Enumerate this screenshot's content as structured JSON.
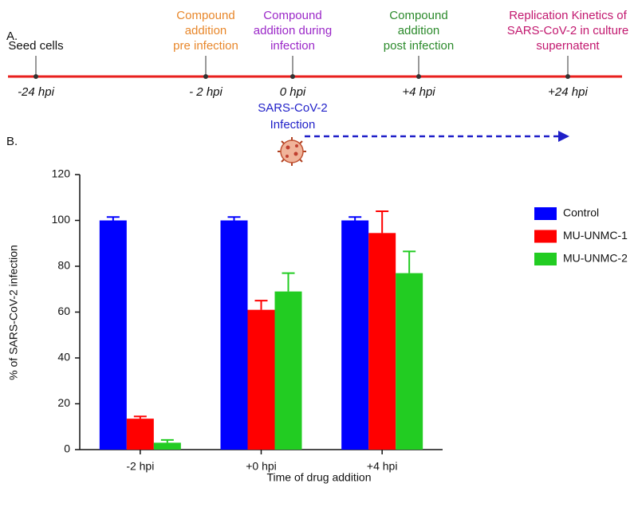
{
  "panel_a": {
    "label": "A.",
    "events": [
      {
        "lines": [
          "Seed cells"
        ],
        "color": "#111111",
        "tick": "-24 hpi"
      },
      {
        "lines": [
          "Compound",
          "addition",
          "pre infection"
        ],
        "color": "#e8872b",
        "tick": "- 2 hpi"
      },
      {
        "lines": [
          "Compound",
          "addition during",
          "infection"
        ],
        "color": "#9b28c8",
        "tick": "0 hpi"
      },
      {
        "lines": [
          "Compound",
          "addition",
          "post infection"
        ],
        "color": "#2b8a2b",
        "tick": "+4 hpi"
      },
      {
        "lines": [
          "Replication Kinetics of",
          "SARS-CoV-2 in culture",
          "supernatent"
        ],
        "color": "#c2186f",
        "tick": "+24 hpi"
      }
    ],
    "infection_label": [
      "SARS-CoV-2",
      "Infection"
    ],
    "infection_color": "#1f1fc8",
    "line_color": "#e8201e"
  },
  "chart_data": {
    "type": "bar",
    "panel_label": "B.",
    "categories": [
      "-2 hpi",
      "+0 hpi",
      "+4 hpi"
    ],
    "series": [
      {
        "name": "Control",
        "color": "#0000ff",
        "values": [
          100,
          100,
          100
        ],
        "errors": [
          1.5,
          1.5,
          1.5
        ]
      },
      {
        "name": "MU-UNMC-1",
        "color": "#ff0000",
        "values": [
          13.5,
          61,
          94.5
        ],
        "errors": [
          1,
          4,
          9.5
        ]
      },
      {
        "name": "MU-UNMC-2",
        "color": "#22cc22",
        "values": [
          3,
          69,
          77
        ],
        "errors": [
          1.2,
          8,
          9.5
        ]
      }
    ],
    "ylim": [
      0,
      120
    ],
    "yticks": [
      0,
      20,
      40,
      60,
      80,
      100,
      120
    ],
    "ylabel": "% of SARS-CoV-2 infection",
    "xlabel": "Time of drug addition",
    "grid": false,
    "legend": "right"
  }
}
